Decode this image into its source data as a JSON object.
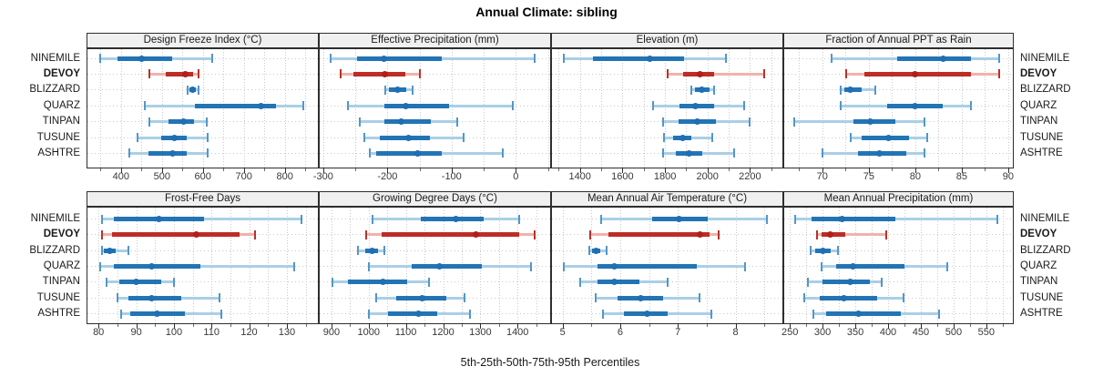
{
  "title": "Annual Climate: sibling",
  "footer": "5th-25th-50th-75th-95th Percentiles",
  "sites": [
    "NINEMILE",
    "DEVOY",
    "BLIZZARD",
    "QUARZ",
    "TINPAN",
    "TUSUNE",
    "ASHTRE"
  ],
  "highlight_site": "DEVOY",
  "colors": {
    "blue_band": "#a9cfe7",
    "blue_box": "#2274b5",
    "blue_cap": "#5397c8",
    "blue_dot": "#1f6fb2",
    "red_band": "#f0b2ac",
    "red_box": "#bd2d26",
    "red_cap": "#b5332c",
    "red_dot": "#b01f1a",
    "strip_bg": "#f0f0f0",
    "grid": "#c9c9c9",
    "border": "#2e2e2e"
  },
  "chart_data": [
    {
      "type": "dotplot-interval",
      "title": "Design Freeze Index (°C)",
      "row": 0,
      "col": 0,
      "xlim": [
        316,
        883
      ],
      "ticks": [
        400,
        500,
        600,
        700,
        800
      ],
      "minor_step": 50,
      "percentiles": [
        5,
        25,
        50,
        75,
        95
      ],
      "series": {
        "NINEMILE": [
          350,
          392,
          451,
          524,
          623
        ],
        "DEVOY": [
          469,
          510,
          557,
          577,
          590
        ],
        "BLIZZARD": [
          562,
          568,
          575,
          582,
          589
        ],
        "QUARZ": [
          459,
          581,
          741,
          778,
          845
        ],
        "TINPAN": [
          470,
          515,
          552,
          578,
          610
        ],
        "TUSUNE": [
          440,
          498,
          531,
          561,
          612
        ],
        "ASHTRE": [
          420,
          468,
          526,
          560,
          612
        ]
      }
    },
    {
      "type": "dotplot-interval",
      "title": "Effective Precipitation (mm)",
      "row": 0,
      "col": 1,
      "xlim": [
        -307,
        55
      ],
      "ticks": [
        -300,
        -200,
        -100,
        0
      ],
      "minor_step": 50,
      "percentiles": [
        5,
        25,
        50,
        75,
        95
      ],
      "series": {
        "NINEMILE": [
          -288,
          -248,
          -206,
          -116,
          30
        ],
        "DEVOY": [
          -273,
          -253,
          -204,
          -172,
          -150
        ],
        "BLIZZARD": [
          -204,
          -198,
          -184,
          -170,
          -161
        ],
        "QUARZ": [
          -262,
          -205,
          -172,
          -104,
          -5
        ],
        "TINPAN": [
          -243,
          -205,
          -178,
          -132,
          -92
        ],
        "TUSUNE": [
          -236,
          -212,
          -167,
          -133,
          -81
        ],
        "ASHTRE": [
          -228,
          -217,
          -153,
          -115,
          -21
        ]
      }
    },
    {
      "type": "dotplot-interval",
      "title": "Elevation (m)",
      "row": 0,
      "col": 2,
      "xlim": [
        1264,
        2357
      ],
      "ticks": [
        1400,
        1600,
        1800,
        2000,
        2200
      ],
      "minor_step": 100,
      "percentiles": [
        5,
        25,
        50,
        75,
        95
      ],
      "series": {
        "NINEMILE": [
          1325,
          1463,
          1730,
          1891,
          2088
        ],
        "DEVOY": [
          1814,
          1884,
          1964,
          2032,
          2266
        ],
        "BLIZZARD": [
          1923,
          1940,
          1975,
          2011,
          2032
        ],
        "QUARZ": [
          1744,
          1870,
          1945,
          2032,
          2172
        ],
        "TINPAN": [
          1793,
          1863,
          1950,
          2039,
          2200
        ],
        "TUSUNE": [
          1797,
          1839,
          1884,
          1926,
          2021
        ],
        "ASHTRE": [
          1793,
          1849,
          1912,
          1975,
          2126
        ]
      }
    },
    {
      "type": "dotplot-interval",
      "title": "Fraction of Annual PPT as Rain",
      "row": 0,
      "col": 3,
      "xlim": [
        65.8,
        90.6
      ],
      "ticks": [
        70,
        75,
        80,
        85,
        90
      ],
      "minor_step": 2.5,
      "percentiles": [
        5,
        25,
        50,
        75,
        95
      ],
      "series": {
        "NINEMILE": [
          71,
          78,
          83,
          86,
          89
        ],
        "DEVOY": [
          72.6,
          74.5,
          80,
          86,
          89
        ],
        "BLIZZARD": [
          72,
          72.4,
          73,
          74.2,
          75.7
        ],
        "QUARZ": [
          72,
          77,
          80,
          83,
          86
        ],
        "TINPAN": [
          67,
          73.3,
          75.2,
          77.9,
          81
        ],
        "TUSUNE": [
          73,
          74.2,
          77.1,
          79.3,
          81.3
        ],
        "ASHTRE": [
          70,
          73.8,
          76.1,
          79,
          81
        ]
      }
    },
    {
      "type": "dotplot-interval",
      "title": "Frost-Free Days",
      "row": 1,
      "col": 0,
      "xlim": [
        76.8,
        138.5
      ],
      "ticks": [
        80,
        90,
        100,
        110,
        120,
        130
      ],
      "minor_step": 5,
      "percentiles": [
        5,
        25,
        50,
        75,
        95
      ],
      "series": {
        "NINEMILE": [
          81,
          84,
          96,
          108,
          134
        ],
        "DEVOY": [
          81,
          83.5,
          106,
          117.5,
          121.5
        ],
        "BLIZZARD": [
          81,
          81.5,
          83,
          84.5,
          88
        ],
        "QUARZ": [
          80.5,
          84,
          94,
          107,
          132
        ],
        "TINPAN": [
          82,
          85.5,
          90,
          96.5,
          100
        ],
        "TUSUNE": [
          85,
          88,
          94,
          102,
          112
        ],
        "ASHTRE": [
          86,
          88.5,
          95.5,
          103,
          112.5
        ]
      }
    },
    {
      "type": "dotplot-interval",
      "title": "Growing Degree Days (°C)",
      "row": 1,
      "col": 1,
      "xlim": [
        866,
        1490
      ],
      "ticks": [
        900,
        1000,
        1100,
        1200,
        1300,
        1400
      ],
      "minor_step": 50,
      "percentiles": [
        5,
        25,
        50,
        75,
        95
      ],
      "series": {
        "NINEMILE": [
          1011,
          1139,
          1234,
          1310,
          1404
        ],
        "DEVOY": [
          992,
          1035,
          1288,
          1405,
          1447
        ],
        "BLIZZARD": [
          972,
          990,
          1008,
          1025,
          1041
        ],
        "QUARZ": [
          1000,
          1115,
          1190,
          1305,
          1435
        ],
        "TINPAN": [
          902,
          943,
          1039,
          1102,
          1163
        ],
        "TUSUNE": [
          1021,
          1074,
          1144,
          1208,
          1257
        ],
        "ASHTRE": [
          1000,
          1053,
          1133,
          1184,
          1273
        ]
      }
    },
    {
      "type": "dotplot-interval",
      "title": "Mean Annual Air Temperature (°C)",
      "row": 1,
      "col": 2,
      "xlim": [
        4.8,
        8.83
      ],
      "ticks": [
        5,
        6,
        7,
        8
      ],
      "minor_step": 0.5,
      "percentiles": [
        5,
        25,
        50,
        75,
        95
      ],
      "series": {
        "NINEMILE": [
          5.67,
          6.55,
          7.02,
          7.52,
          8.55
        ],
        "DEVOY": [
          5.48,
          5.8,
          7.38,
          7.55,
          7.7
        ],
        "BLIZZARD": [
          5.47,
          5.51,
          5.58,
          5.66,
          5.77
        ],
        "QUARZ": [
          5.02,
          5.6,
          5.89,
          7.33,
          8.16
        ],
        "TINPAN": [
          5.3,
          5.6,
          5.89,
          6.33,
          6.82
        ],
        "TUSUNE": [
          5.58,
          5.95,
          6.36,
          6.75,
          7.37
        ],
        "ASHTRE": [
          5.7,
          6.06,
          6.46,
          6.83,
          7.58
        ]
      }
    },
    {
      "type": "dotplot-interval",
      "title": "Mean Annual Precipitation (mm)",
      "row": 1,
      "col": 3,
      "xlim": [
        240,
        592
      ],
      "ticks": [
        250,
        300,
        350,
        400,
        450,
        500,
        550
      ],
      "minor_step": 25,
      "percentiles": [
        5,
        25,
        50,
        75,
        95
      ],
      "series": {
        "NINEMILE": [
          258,
          283,
          330,
          411,
          567
        ],
        "DEVOY": [
          291,
          298,
          312,
          334,
          397
        ],
        "BLIZZARD": [
          281,
          289,
          300,
          312,
          324
        ],
        "QUARZ": [
          298,
          321,
          347,
          425,
          490
        ],
        "TINPAN": [
          278,
          300,
          342,
          372,
          390
        ],
        "TUSUNE": [
          272,
          296,
          332,
          383,
          424
        ],
        "ASHTRE": [
          286,
          305,
          355,
          420,
          478
        ]
      }
    }
  ]
}
